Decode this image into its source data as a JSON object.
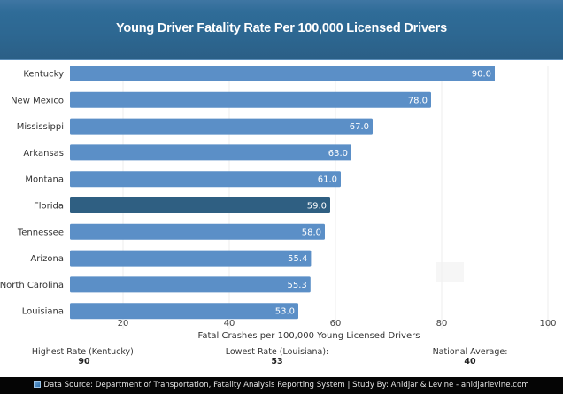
{
  "header": {
    "title": "Young Driver Fatality Rate Per 100,000 Licensed Drivers"
  },
  "chart_data": {
    "type": "bar",
    "orientation": "horizontal",
    "title": "Young Driver Fatality Rate Per 100,000 Licensed Drivers",
    "xlabel": "Fatal Crashes per 100,000 Young Licensed Drivers",
    "ylabel": "",
    "categories": [
      "Kentucky",
      "New Mexico",
      "Mississippi",
      "Arkansas",
      "Montana",
      "Florida",
      "Tennessee",
      "Arizona",
      "North Carolina",
      "Louisiana"
    ],
    "values": [
      90.0,
      78.0,
      67.0,
      63.0,
      61.0,
      59.0,
      58.0,
      55.4,
      55.3,
      53.0
    ],
    "value_labels": [
      "90.0",
      "78.0",
      "67.0",
      "63.0",
      "61.0",
      "59.0",
      "58.0",
      "55.4",
      "55.3",
      "53.0"
    ],
    "highlighted_category": "Florida",
    "xlim": [
      10,
      100
    ],
    "xticks": [
      20,
      40,
      60,
      80,
      100
    ],
    "grid": true,
    "colors": {
      "bar": "#5b8fc7",
      "highlight": "#2f5f82",
      "grid": "#ececec"
    }
  },
  "stats": [
    {
      "label": "Highest Rate (Kentucky):",
      "value": "90"
    },
    {
      "label": "Lowest Rate (Louisiana):",
      "value": "53"
    },
    {
      "label": "National Average:",
      "value": "40"
    }
  ],
  "footer": {
    "icon": "chart-icon",
    "text": "Data Source: Department of Transportation, Fatality Analysis Reporting System | Study By: Anidjar & Levine - anidjarlevine.com"
  }
}
